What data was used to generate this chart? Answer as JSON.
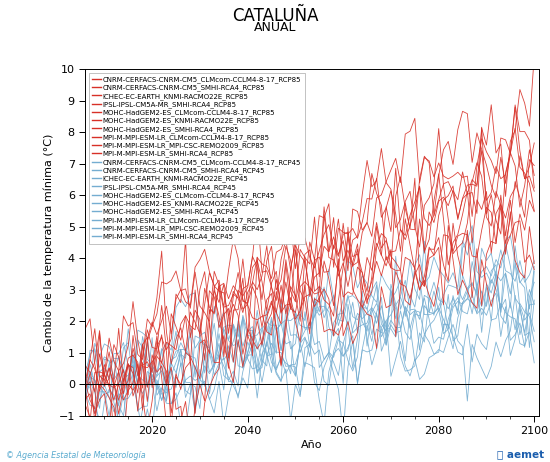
{
  "title": "CATALUÑA",
  "subtitle": "ANUAL",
  "xlabel": "Año",
  "ylabel": "Cambio de la temperatura mínima (°C)",
  "xlim": [
    2006,
    2101
  ],
  "ylim": [
    -1,
    10
  ],
  "yticks": [
    -1,
    0,
    1,
    2,
    3,
    4,
    5,
    6,
    7,
    8,
    9,
    10
  ],
  "xticks": [
    2020,
    2040,
    2060,
    2080,
    2100
  ],
  "x_start": 2006,
  "x_end": 2100,
  "rcp85_color": "#d73027",
  "rcp45_color": "#74add1",
  "legend_rcp85": [
    "CNRM-CERFACS-CNRM-CM5_CLMcom-CCLM4-8-17_RCP85",
    "CNRM-CERFACS-CNRM-CM5_SMHI-RCA4_RCP85",
    "ICHEC-EC-EARTH_KNMI-RACMO22E_RCP85",
    "IPSL-IPSL-CM5A-MR_SMHI-RCA4_RCP85",
    "MOHC-HadGEM2-ES_CLMcom-CCLM4-8-17_RCP85",
    "MOHC-HadGEM2-ES_KNMI-RACMO22E_RCP85",
    "MOHC-HadGEM2-ES_SMHI-RCA4_RCP85",
    "MPI-M-MPI-ESM-LR_CLMcom-CCLM4-8-17_RCP85",
    "MPI-M-MPI-ESM-LR_MPI-CSC-REMO2009_RCP85",
    "MPI-M-MPI-ESM-LR_SMHI-RCA4_RCP85"
  ],
  "legend_rcp45": [
    "CNRM-CERFACS-CNRM-CM5_CLMcom-CCLM4-8-17_RCP45",
    "CNRM-CERFACS-CNRM-CM5_SMHI-RCA4_RCP45",
    "ICHEC-EC-EARTH_KNMI-RACMO22E_RCP45",
    "IPSL-IPSL-CM5A-MR_SMHI-RCA4_RCP45",
    "MOHC-HadGEM2-ES_CLMcom-CCLM4-8-17_RCP45",
    "MOHC-HadGEM2-ES_KNMI-RACMO22E_RCP45",
    "MOHC-HadGEM2-ES_SMHI-RCA4_RCP45",
    "MPI-M-MPI-ESM-LR_CLMcom-CCLM4-8-17_RCP45",
    "MPI-M-MPI-ESM-LR_MPI-CSC-REMO2009_RCP45",
    "MPI-M-MPI-ESM-LR_SMHI-RCA4_RCP45"
  ],
  "n_rcp85": 10,
  "n_rcp45": 10,
  "seed": 42,
  "background_color": "#ffffff",
  "footer_left": "© Agencia Estatal de Meteorología",
  "footer_left_color": "#5aabcf",
  "title_fontsize": 12,
  "subtitle_fontsize": 9,
  "axis_label_fontsize": 8,
  "legend_fontsize": 5.0,
  "tick_fontsize": 8
}
